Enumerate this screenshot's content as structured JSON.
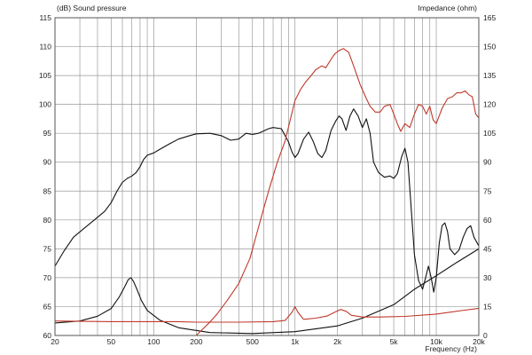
{
  "chart_data": {
    "type": "line",
    "x_scale": "log",
    "grid": true,
    "x_range": [
      20,
      20000
    ],
    "y_left_range": [
      60,
      115
    ],
    "y_right_range": [
      0,
      165
    ],
    "y_left_title": "(dB)  Sound pressure",
    "y_right_title": "Impedance  (ohm)",
    "x_title": "Frequency  (Hz)",
    "x_ticks": [
      {
        "v": 20,
        "label": "20"
      },
      {
        "v": 50,
        "label": "50"
      },
      {
        "v": 100,
        "label": "100"
      },
      {
        "v": 200,
        "label": "200"
      },
      {
        "v": 500,
        "label": "500"
      },
      {
        "v": 1000,
        "label": "1k"
      },
      {
        "v": 2000,
        "label": "2k"
      },
      {
        "v": 5000,
        "label": "5k"
      },
      {
        "v": 10000,
        "label": "10k"
      },
      {
        "v": 20000,
        "label": "20k"
      }
    ],
    "y_left_ticks": [
      "60",
      "65",
      "70",
      "75",
      "80",
      "85",
      "90",
      "95",
      "100",
      "105",
      "110",
      "115"
    ],
    "y_right_ticks": [
      "0",
      "15",
      "30",
      "45",
      "60",
      "75",
      "90",
      "105",
      "120",
      "135",
      "150",
      "165"
    ],
    "series": [
      {
        "color": "#111111",
        "axis": "left",
        "points": [
          [
            20,
            72
          ],
          [
            23,
            74.5
          ],
          [
            27,
            77
          ],
          [
            32,
            78.5
          ],
          [
            38,
            80
          ],
          [
            45,
            81.5
          ],
          [
            50,
            83
          ],
          [
            55,
            85
          ],
          [
            60,
            86.5
          ],
          [
            65,
            87.2
          ],
          [
            70,
            87.6
          ],
          [
            75,
            88.2
          ],
          [
            80,
            89.2
          ],
          [
            85,
            90.5
          ],
          [
            90,
            91.2
          ],
          [
            100,
            91.6
          ],
          [
            110,
            92.2
          ],
          [
            130,
            93.2
          ],
          [
            150,
            94
          ],
          [
            180,
            94.6
          ],
          [
            200,
            94.9
          ],
          [
            250,
            95
          ],
          [
            300,
            94.6
          ],
          [
            350,
            93.8
          ],
          [
            400,
            94
          ],
          [
            450,
            95
          ],
          [
            500,
            94.8
          ],
          [
            550,
            95
          ],
          [
            600,
            95.4
          ],
          [
            650,
            95.8
          ],
          [
            700,
            96
          ],
          [
            800,
            95.8
          ],
          [
            900,
            93.5
          ],
          [
            950,
            91.8
          ],
          [
            1000,
            90.8
          ],
          [
            1050,
            91.5
          ],
          [
            1150,
            94
          ],
          [
            1250,
            95.2
          ],
          [
            1350,
            93.5
          ],
          [
            1450,
            91.5
          ],
          [
            1550,
            90.8
          ],
          [
            1650,
            92
          ],
          [
            1800,
            95.5
          ],
          [
            1950,
            97.2
          ],
          [
            2050,
            98
          ],
          [
            2150,
            97.5
          ],
          [
            2300,
            95.5
          ],
          [
            2450,
            98
          ],
          [
            2600,
            99.2
          ],
          [
            2800,
            98
          ],
          [
            3000,
            96
          ],
          [
            3200,
            97.5
          ],
          [
            3400,
            95
          ],
          [
            3600,
            90
          ],
          [
            3900,
            88.2
          ],
          [
            4300,
            87.4
          ],
          [
            4700,
            87.6
          ],
          [
            5000,
            87.2
          ],
          [
            5300,
            88
          ],
          [
            5700,
            91
          ],
          [
            6000,
            92.4
          ],
          [
            6300,
            90
          ],
          [
            6600,
            83
          ],
          [
            7000,
            74
          ],
          [
            7500,
            69.5
          ],
          [
            8000,
            68
          ],
          [
            8400,
            70
          ],
          [
            8800,
            72
          ],
          [
            9200,
            70
          ],
          [
            9600,
            67.5
          ],
          [
            10000,
            70
          ],
          [
            10500,
            76
          ],
          [
            11000,
            79
          ],
          [
            11500,
            79.5
          ],
          [
            12000,
            78
          ],
          [
            12500,
            75
          ],
          [
            13500,
            74
          ],
          [
            14500,
            74.8
          ],
          [
            15500,
            77
          ],
          [
            16500,
            78.5
          ],
          [
            17500,
            79
          ],
          [
            18500,
            77
          ],
          [
            20000,
            75.5
          ]
        ]
      },
      {
        "color": "#111111",
        "axis": "right",
        "points": [
          [
            20,
            6.5
          ],
          [
            30,
            7.5
          ],
          [
            40,
            10
          ],
          [
            50,
            14
          ],
          [
            57,
            20
          ],
          [
            62,
            25
          ],
          [
            66,
            29
          ],
          [
            69,
            30
          ],
          [
            72,
            28
          ],
          [
            76,
            24
          ],
          [
            82,
            18
          ],
          [
            90,
            13
          ],
          [
            110,
            8
          ],
          [
            150,
            4
          ],
          [
            250,
            1.5
          ],
          [
            500,
            1
          ],
          [
            1000,
            2
          ],
          [
            2000,
            5
          ],
          [
            3000,
            9
          ],
          [
            5000,
            16
          ],
          [
            7000,
            24
          ],
          [
            10000,
            31
          ],
          [
            14000,
            38
          ],
          [
            20000,
            45
          ]
        ]
      },
      {
        "color": "#c0392b",
        "axis": "left",
        "points": [
          [
            20,
            62.5
          ],
          [
            50,
            62.4
          ],
          [
            100,
            62.4
          ],
          [
            150,
            62.4
          ],
          [
            200,
            62.3
          ],
          [
            400,
            62.3
          ],
          [
            700,
            62.4
          ],
          [
            850,
            62.6
          ],
          [
            950,
            64
          ],
          [
            1000,
            65
          ],
          [
            1050,
            64
          ],
          [
            1150,
            62.8
          ],
          [
            1400,
            63
          ],
          [
            1700,
            63.4
          ],
          [
            1900,
            64
          ],
          [
            2100,
            64.5
          ],
          [
            2300,
            64.2
          ],
          [
            2500,
            63.5
          ],
          [
            3000,
            63.2
          ],
          [
            4000,
            63.2
          ],
          [
            6000,
            63.3
          ],
          [
            10000,
            63.7
          ],
          [
            15000,
            64.3
          ],
          [
            20000,
            64.7
          ]
        ]
      },
      {
        "color": "#c0392b",
        "axis": "right",
        "points": [
          [
            200,
            0
          ],
          [
            220,
            3
          ],
          [
            250,
            7
          ],
          [
            280,
            11
          ],
          [
            330,
            18
          ],
          [
            400,
            27
          ],
          [
            480,
            40
          ],
          [
            560,
            58
          ],
          [
            650,
            75
          ],
          [
            750,
            90
          ],
          [
            850,
            101
          ],
          [
            1000,
            122
          ],
          [
            1100,
            128
          ],
          [
            1200,
            132
          ],
          [
            1300,
            135
          ],
          [
            1400,
            138
          ],
          [
            1550,
            140
          ],
          [
            1650,
            139
          ],
          [
            1750,
            142
          ],
          [
            1900,
            146
          ],
          [
            2050,
            148
          ],
          [
            2200,
            149
          ],
          [
            2400,
            147
          ],
          [
            2600,
            140
          ],
          [
            2900,
            130
          ],
          [
            3200,
            123
          ],
          [
            3400,
            119
          ],
          [
            3700,
            116
          ],
          [
            4000,
            116
          ],
          [
            4300,
            119
          ],
          [
            4700,
            120
          ],
          [
            5000,
            115
          ],
          [
            5300,
            110
          ],
          [
            5600,
            106
          ],
          [
            6000,
            110
          ],
          [
            6500,
            108
          ],
          [
            7000,
            115
          ],
          [
            7500,
            120
          ],
          [
            8000,
            119
          ],
          [
            8500,
            115
          ],
          [
            9000,
            119
          ],
          [
            9500,
            112
          ],
          [
            10000,
            110
          ],
          [
            11000,
            118
          ],
          [
            12000,
            123
          ],
          [
            13000,
            124
          ],
          [
            14000,
            126
          ],
          [
            15000,
            126
          ],
          [
            16000,
            127
          ],
          [
            17000,
            125
          ],
          [
            18000,
            124
          ],
          [
            19000,
            115
          ],
          [
            20000,
            113
          ]
        ]
      }
    ]
  }
}
